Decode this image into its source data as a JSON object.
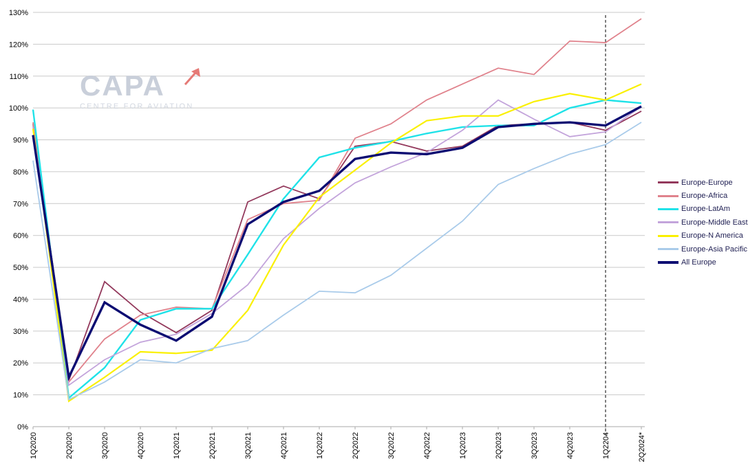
{
  "watermark": {
    "brand": "CAPA",
    "tagline": "CENTRE FOR AVIATION",
    "arrow_color": "#e57a76"
  },
  "chart_data": {
    "type": "line",
    "title": "",
    "xlabel": "",
    "ylabel": "",
    "ylim": [
      0,
      130
    ],
    "ytick_step": 10,
    "yticks": [
      "0%",
      "10%",
      "20%",
      "30%",
      "40%",
      "50%",
      "60%",
      "70%",
      "80%",
      "90%",
      "100%",
      "110%",
      "120%",
      "130%"
    ],
    "grid": "horizontal",
    "legend_position": "right",
    "divider_at": "1Q2204",
    "categories": [
      "1Q2020",
      "2Q2020",
      "3Q2020",
      "4Q2020",
      "1Q2021",
      "2Q2021",
      "3Q2021",
      "4Q2021",
      "1Q2022",
      "2Q2022",
      "3Q2022",
      "4Q2022",
      "1Q2023",
      "2Q2023",
      "3Q2023",
      "4Q2023",
      "1Q2204",
      "2Q2024*"
    ],
    "series": [
      {
        "name": "Europe-Europe",
        "color": "#93395c",
        "width": 1.8,
        "values": [
          95,
          14.5,
          45.5,
          36,
          29.5,
          36.5,
          70.5,
          75.5,
          71.5,
          88,
          89.5,
          86.5,
          88,
          94.5,
          95,
          95.5,
          93,
          99
        ]
      },
      {
        "name": "Europe-Africa",
        "color": "#e0828c",
        "width": 1.8,
        "values": [
          95.5,
          14,
          27.5,
          35,
          37.5,
          37,
          65,
          70,
          71,
          90.5,
          95,
          102.5,
          107.5,
          112.5,
          110.5,
          121,
          120.5,
          128
        ]
      },
      {
        "name": "Europe-LatAm",
        "color": "#1fe2e8",
        "width": 2.4,
        "values": [
          99.5,
          9,
          18.5,
          33.5,
          37,
          37,
          54,
          71.5,
          84.5,
          87.5,
          89.5,
          92,
          94,
          94.5,
          94.5,
          100,
          102.5,
          101.5
        ]
      },
      {
        "name": "Europe-Middle East",
        "color": "#c3a4db",
        "width": 1.8,
        "values": [
          94,
          13,
          21,
          26.5,
          29,
          35.5,
          44.5,
          59,
          68.5,
          76.5,
          81.5,
          86,
          93,
          102.5,
          96.5,
          91,
          92.5,
          100.5
        ]
      },
      {
        "name": "Europe-N America",
        "color": "#faf000",
        "width": 2.2,
        "values": [
          93.5,
          8,
          15.5,
          23.5,
          23,
          24,
          36.5,
          57,
          72,
          80.5,
          89,
          96,
          97.5,
          97.5,
          102,
          104.5,
          102.5,
          107.5
        ]
      },
      {
        "name": "Europe-Asia Pacific",
        "color": "#a9cbea",
        "width": 1.8,
        "values": [
          83.5,
          8.5,
          14,
          21,
          20,
          24.5,
          27,
          35,
          42.5,
          42,
          47.5,
          56,
          64.5,
          76,
          81,
          85.5,
          88.5,
          95.5
        ]
      },
      {
        "name": "All Europe",
        "color": "#0c0c72",
        "width": 3.4,
        "values": [
          91.5,
          15.5,
          39,
          32,
          27,
          34.5,
          63.5,
          70.5,
          74,
          84,
          86,
          85.5,
          87.5,
          94,
          95,
          95.5,
          94.5,
          100.5
        ]
      }
    ]
  }
}
